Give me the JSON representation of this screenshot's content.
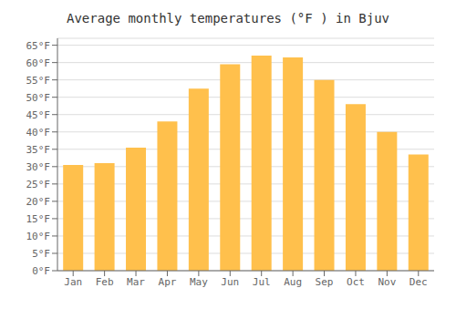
{
  "chart_data": {
    "type": "bar",
    "title": "Average monthly temperatures (°F ) in Bjuv",
    "categories": [
      "Jan",
      "Feb",
      "Mar",
      "Apr",
      "May",
      "Jun",
      "Jul",
      "Aug",
      "Sep",
      "Oct",
      "Nov",
      "Dec"
    ],
    "values": [
      30.5,
      31.0,
      35.5,
      43.0,
      52.5,
      59.5,
      62.0,
      61.5,
      55.0,
      48.0,
      40.0,
      33.5
    ],
    "color": "#FFC04C",
    "ylim": [
      0,
      67
    ],
    "yticks": [
      {
        "value": 0,
        "label": "0°F"
      },
      {
        "value": 5,
        "label": "5°F"
      },
      {
        "value": 10,
        "label": "10°F"
      },
      {
        "value": 15,
        "label": "15°F"
      },
      {
        "value": 20,
        "label": "20°F"
      },
      {
        "value": 25,
        "label": "25°F"
      },
      {
        "value": 30,
        "label": "30°F"
      },
      {
        "value": 35,
        "label": "35°F"
      },
      {
        "value": 40,
        "label": "40°F"
      },
      {
        "value": 45,
        "label": "45°F"
      },
      {
        "value": 50,
        "label": "50°F"
      },
      {
        "value": 55,
        "label": "55°F"
      },
      {
        "value": 60,
        "label": "60°F"
      },
      {
        "value": 65,
        "label": "65°F"
      }
    ],
    "grid": true
  }
}
